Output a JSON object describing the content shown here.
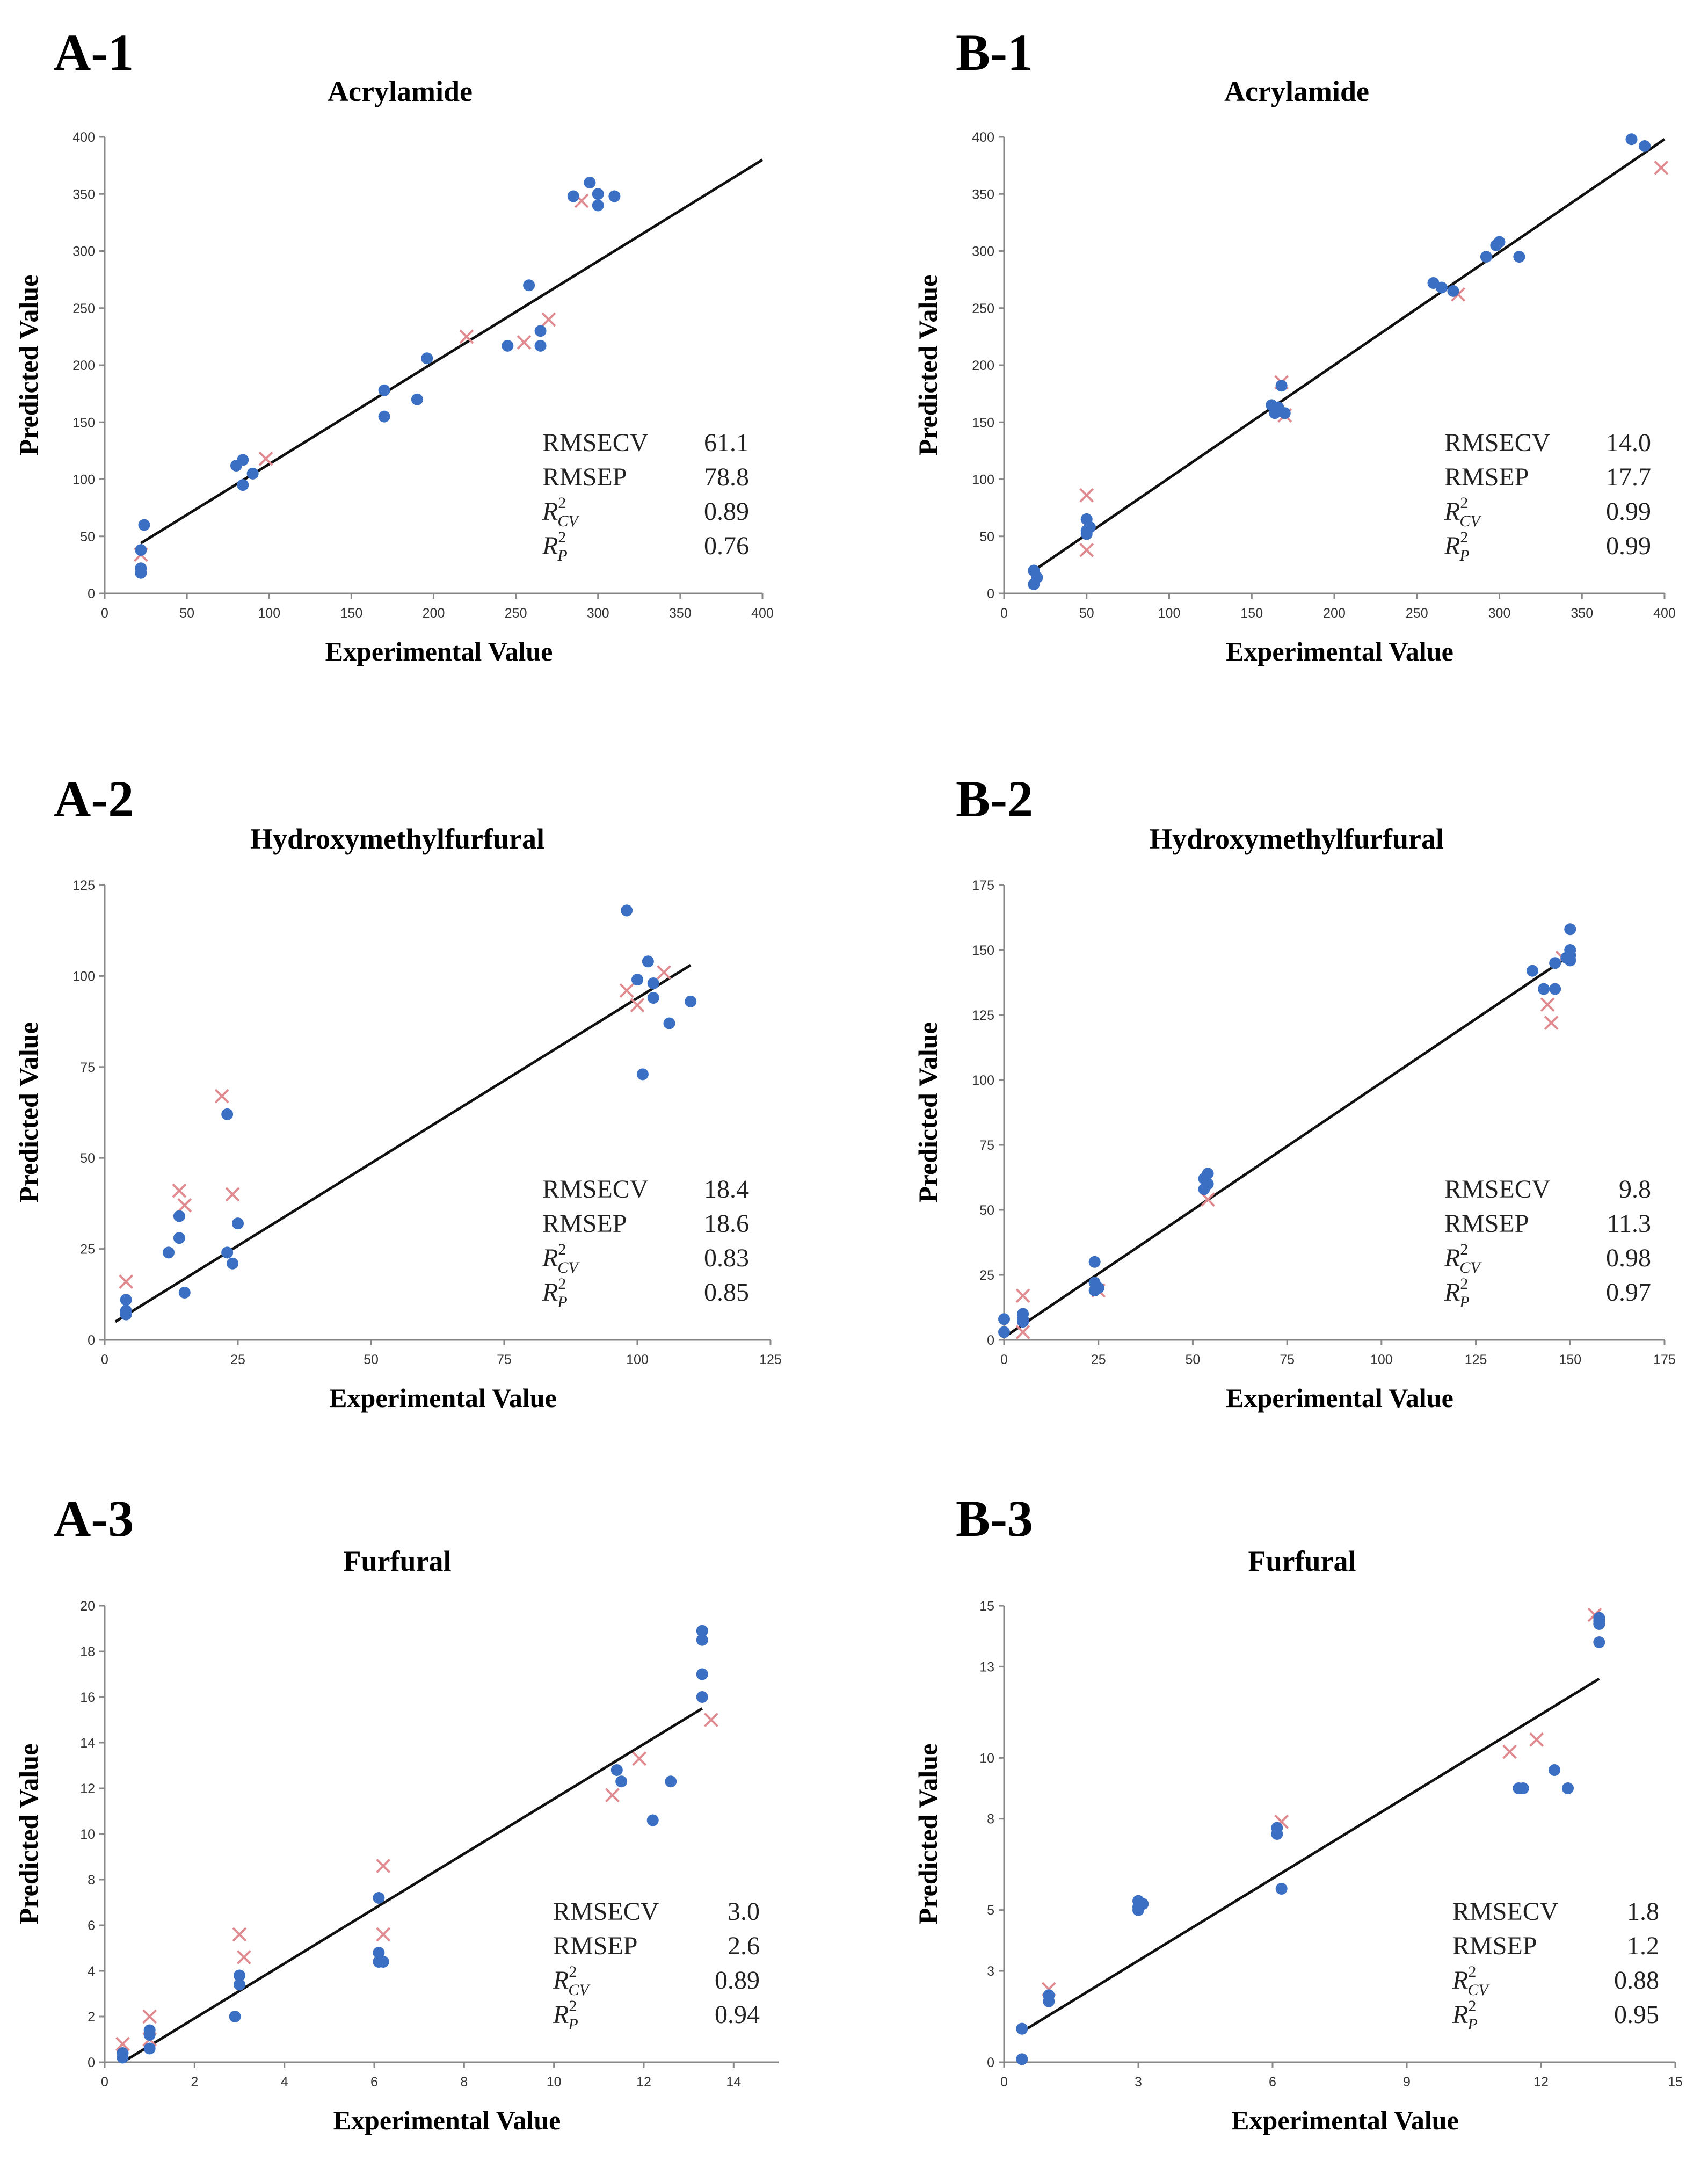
{
  "colors": {
    "calibration": "#3a6fc4",
    "validation": "#e0898f",
    "fit": "#111111",
    "axis": "#888888"
  },
  "chart_data": [
    {
      "id": "A-1",
      "panel": "A-1",
      "type": "scatter",
      "title": "Acrylamide",
      "xlabel": "Experimental Value",
      "ylabel": "Predicted Value",
      "xlim": [
        0,
        400
      ],
      "ylim": [
        0,
        400
      ],
      "xticks": [
        0,
        50,
        100,
        150,
        200,
        250,
        300,
        350,
        400
      ],
      "yticks": [
        0,
        50,
        100,
        150,
        200,
        250,
        300,
        350,
        400
      ],
      "tick_format": [
        "0",
        "50",
        "100",
        "150",
        "200",
        "250",
        "300",
        "350",
        "400"
      ],
      "ytick_format": [
        "0",
        "50",
        "100",
        "150",
        "200",
        "250",
        "300",
        "350",
        "400"
      ],
      "fit_line": {
        "x": [
          22,
          400
        ],
        "y": [
          44,
          380
        ]
      },
      "calibration": [
        [
          22,
          18
        ],
        [
          22,
          22
        ],
        [
          24,
          60
        ],
        [
          22,
          38
        ],
        [
          80,
          112
        ],
        [
          84,
          117
        ],
        [
          84,
          95
        ],
        [
          90,
          105
        ],
        [
          170,
          178
        ],
        [
          170,
          155
        ],
        [
          190,
          170
        ],
        [
          196,
          206
        ],
        [
          245,
          217
        ],
        [
          258,
          270
        ],
        [
          265,
          217
        ],
        [
          265,
          230
        ],
        [
          285,
          348
        ],
        [
          295,
          360
        ],
        [
          300,
          350
        ],
        [
          300,
          340
        ],
        [
          310,
          348
        ]
      ],
      "validation": [
        [
          22,
          34
        ],
        [
          98,
          118
        ],
        [
          220,
          225
        ],
        [
          255,
          220
        ],
        [
          270,
          240
        ],
        [
          290,
          344
        ]
      ],
      "stats": [
        {
          "label": "RMSECV",
          "value": "61.1"
        },
        {
          "label": "RMSEP",
          "value": "78.8"
        },
        {
          "label": "R",
          "sup": "2",
          "sub": "CV",
          "value": "0.89"
        },
        {
          "label": "R",
          "sup": "2",
          "sub": "P",
          "value": "0.76"
        }
      ]
    },
    {
      "id": "B-1",
      "panel": "B-1",
      "type": "scatter",
      "title": "Acrylamide",
      "xlabel": "Experimental Value",
      "ylabel": "Predicted Value",
      "xlim": [
        0,
        400
      ],
      "ylim": [
        0,
        400
      ],
      "xticks": [
        0,
        50,
        100,
        150,
        200,
        250,
        300,
        350,
        400
      ],
      "yticks": [
        0,
        50,
        100,
        150,
        200,
        250,
        300,
        350,
        400
      ],
      "tick_format": [
        "0",
        "50",
        "100",
        "150",
        "200",
        "250",
        "300",
        "350",
        "400"
      ],
      "ytick_format": [
        "0",
        "50",
        "100",
        "150",
        "200",
        "250",
        "300",
        "350",
        "400"
      ],
      "fit_line": {
        "x": [
          18,
          400
        ],
        "y": [
          20,
          398
        ]
      },
      "calibration": [
        [
          18,
          8
        ],
        [
          18,
          20
        ],
        [
          20,
          14
        ],
        [
          50,
          55
        ],
        [
          50,
          65
        ],
        [
          52,
          58
        ],
        [
          50,
          52
        ],
        [
          162,
          165
        ],
        [
          164,
          158
        ],
        [
          166,
          163
        ],
        [
          168,
          182
        ],
        [
          170,
          158
        ],
        [
          260,
          272
        ],
        [
          265,
          268
        ],
        [
          272,
          265
        ],
        [
          292,
          295
        ],
        [
          298,
          305
        ],
        [
          300,
          308
        ],
        [
          312,
          295
        ],
        [
          380,
          398
        ],
        [
          388,
          392
        ]
      ],
      "validation": [
        [
          50,
          86
        ],
        [
          50,
          38
        ],
        [
          168,
          185
        ],
        [
          170,
          156
        ],
        [
          275,
          262
        ],
        [
          398,
          373
        ]
      ],
      "stats": [
        {
          "label": "RMSECV",
          "value": "14.0"
        },
        {
          "label": "RMSEP",
          "value": "17.7"
        },
        {
          "label": "R",
          "sup": "2",
          "sub": "CV",
          "value": "0.99"
        },
        {
          "label": "R",
          "sup": "2",
          "sub": "P",
          "value": "0.99"
        }
      ]
    },
    {
      "id": "A-2",
      "panel": "A-2",
      "type": "scatter",
      "title": "Hydroxymethylfurfural",
      "xlabel": "Experimental Value",
      "ylabel": "Predicted Value",
      "xlim": [
        0,
        125
      ],
      "ylim": [
        0,
        125
      ],
      "xticks": [
        0,
        25,
        50,
        75,
        100,
        125
      ],
      "yticks": [
        0,
        25,
        50,
        75,
        100,
        125
      ],
      "tick_format": [
        "0",
        "25",
        "50",
        "75",
        "100",
        "125"
      ],
      "ytick_format": [
        "0",
        "25",
        "50",
        "75",
        "100",
        "125"
      ],
      "fit_line": {
        "x": [
          2,
          110
        ],
        "y": [
          5,
          103
        ]
      },
      "calibration": [
        [
          4,
          11
        ],
        [
          4,
          7
        ],
        [
          4,
          8
        ],
        [
          12,
          24
        ],
        [
          14,
          34
        ],
        [
          14,
          28
        ],
        [
          15,
          13
        ],
        [
          23,
          62
        ],
        [
          23,
          24
        ],
        [
          24,
          21
        ],
        [
          25,
          32
        ],
        [
          98,
          118
        ],
        [
          100,
          99
        ],
        [
          101,
          73
        ],
        [
          102,
          104
        ],
        [
          103,
          94
        ],
        [
          103,
          98
        ],
        [
          106,
          87
        ],
        [
          110,
          93
        ]
      ],
      "validation": [
        [
          4,
          16
        ],
        [
          14,
          41
        ],
        [
          15,
          37
        ],
        [
          22,
          67
        ],
        [
          24,
          40
        ],
        [
          98,
          96
        ],
        [
          100,
          92
        ],
        [
          105,
          101
        ]
      ],
      "stats": [
        {
          "label": "RMSECV",
          "value": "18.4"
        },
        {
          "label": "RMSEP",
          "value": "18.6"
        },
        {
          "label": "R",
          "sup": "2",
          "sub": "CV",
          "value": "0.83"
        },
        {
          "label": "R",
          "sup": "2",
          "sub": "P",
          "value": "0.85"
        }
      ]
    },
    {
      "id": "B-2",
      "panel": "B-2",
      "type": "scatter",
      "title": "Hydroxymethylfurfural",
      "xlabel": "Experimental Value",
      "ylabel": "Predicted Value",
      "xlim": [
        0,
        175
      ],
      "ylim": [
        0,
        175
      ],
      "xticks": [
        0,
        25,
        50,
        75,
        100,
        125,
        150,
        175
      ],
      "yticks": [
        0,
        25,
        50,
        75,
        100,
        125,
        150,
        175
      ],
      "tick_format": [
        "0",
        "25",
        "50",
        "75",
        "100",
        "125",
        "150",
        "175"
      ],
      "ytick_format": [
        "0",
        "25",
        "50",
        "75",
        "100",
        "125",
        "150",
        "175"
      ],
      "fit_line": {
        "x": [
          0,
          150
        ],
        "y": [
          1,
          148
        ]
      },
      "calibration": [
        [
          0,
          8
        ],
        [
          0,
          3
        ],
        [
          5,
          7
        ],
        [
          5,
          10
        ],
        [
          5,
          8
        ],
        [
          24,
          30
        ],
        [
          24,
          22
        ],
        [
          25,
          20
        ],
        [
          24,
          19
        ],
        [
          53,
          62
        ],
        [
          54,
          64
        ],
        [
          53,
          58
        ],
        [
          54,
          60
        ],
        [
          140,
          142
        ],
        [
          143,
          135
        ],
        [
          146,
          135
        ],
        [
          146,
          145
        ],
        [
          149,
          147
        ],
        [
          150,
          158
        ],
        [
          150,
          150
        ],
        [
          150,
          148
        ],
        [
          150,
          146
        ]
      ],
      "validation": [
        [
          5,
          17
        ],
        [
          5,
          3
        ],
        [
          25,
          19
        ],
        [
          54,
          54
        ],
        [
          144,
          129
        ],
        [
          145,
          122
        ],
        [
          148,
          147
        ]
      ],
      "stats": [
        {
          "label": "RMSECV",
          "value": "9.8"
        },
        {
          "label": "RMSEP",
          "value": "11.3"
        },
        {
          "label": "R",
          "sup": "2",
          "sub": "CV",
          "value": "0.98"
        },
        {
          "label": "R",
          "sup": "2",
          "sub": "P",
          "value": "0.97"
        }
      ]
    },
    {
      "id": "A-3",
      "panel": "A-3",
      "type": "scatter",
      "title": "Furfural",
      "xlabel": "Experimental Value",
      "ylabel": "Predicted Value",
      "xlim": [
        0,
        15
      ],
      "ylim": [
        0,
        20
      ],
      "xticks": [
        0,
        2,
        4,
        6,
        8,
        10,
        12,
        14
      ],
      "yticks": [
        0,
        2,
        4,
        6,
        8,
        10,
        12,
        14,
        16,
        18,
        20
      ],
      "tick_format": [
        "0",
        "2",
        "4",
        "6",
        "8",
        "10",
        "12",
        "14"
      ],
      "ytick_format": [
        "0",
        "2",
        "4",
        "6",
        "8",
        "10",
        "12",
        "14",
        "16",
        "18",
        "20"
      ],
      "fit_line": {
        "x": [
          0.4,
          13.3
        ],
        "y": [
          0,
          15.5
        ]
      },
      "calibration": [
        [
          0.4,
          0.4
        ],
        [
          0.4,
          0.2
        ],
        [
          1,
          0.6
        ],
        [
          1,
          1.2
        ],
        [
          1,
          1.4
        ],
        [
          2.9,
          2
        ],
        [
          3,
          3.8
        ],
        [
          3,
          3.4
        ],
        [
          6.1,
          7.2
        ],
        [
          6.1,
          4.8
        ],
        [
          6.1,
          4.4
        ],
        [
          6.2,
          4.4
        ],
        [
          11.4,
          12.8
        ],
        [
          11.5,
          12.3
        ],
        [
          12.2,
          10.6
        ],
        [
          12.6,
          12.3
        ],
        [
          13.3,
          18.9
        ],
        [
          13.3,
          18.5
        ],
        [
          13.3,
          17
        ],
        [
          13.3,
          16
        ]
      ],
      "validation": [
        [
          0.4,
          0.8
        ],
        [
          1,
          2
        ],
        [
          1,
          1
        ],
        [
          3,
          5.6
        ],
        [
          3.1,
          4.6
        ],
        [
          6.2,
          8.6
        ],
        [
          6.2,
          5.6
        ],
        [
          11.3,
          11.7
        ],
        [
          11.9,
          13.3
        ],
        [
          13.5,
          15
        ]
      ],
      "stats": [
        {
          "label": "RMSECV",
          "value": "3.0"
        },
        {
          "label": "RMSEP",
          "value": "2.6"
        },
        {
          "label": "R",
          "sup": "2",
          "sub": "CV",
          "value": "0.89"
        },
        {
          "label": "R",
          "sup": "2",
          "sub": "P",
          "value": "0.94"
        }
      ]
    },
    {
      "id": "B-3",
      "panel": "B-3",
      "type": "scatter",
      "title": "Furfural",
      "xlabel": "Experimental Value",
      "ylabel": "Predicted Value",
      "xlim": [
        0,
        15
      ],
      "ylim": [
        0,
        15
      ],
      "xticks": [
        0,
        3,
        6,
        9,
        12,
        15
      ],
      "yticks": [
        0,
        3,
        5,
        8,
        10,
        13,
        15
      ],
      "tick_format": [
        "0",
        "3",
        "6",
        "9",
        "12",
        "15"
      ],
      "ytick_format": [
        "0",
        "3",
        "5",
        "8",
        "10",
        "13",
        "15"
      ],
      "fit_line": {
        "x": [
          0.4,
          13.3
        ],
        "y": [
          1,
          12.6
        ]
      },
      "calibration": [
        [
          0.4,
          1.1
        ],
        [
          0.4,
          0.1
        ],
        [
          1,
          2.2
        ],
        [
          1,
          2
        ],
        [
          3,
          5.1
        ],
        [
          3,
          5.3
        ],
        [
          3.1,
          5.2
        ],
        [
          3,
          5
        ],
        [
          6.1,
          7.7
        ],
        [
          6.1,
          7.5
        ],
        [
          6.2,
          5.7
        ],
        [
          11.5,
          9
        ],
        [
          11.6,
          9
        ],
        [
          12.3,
          9.6
        ],
        [
          12.6,
          9
        ],
        [
          13.3,
          14.6
        ],
        [
          13.3,
          14.4
        ],
        [
          13.3,
          14.5
        ],
        [
          13.3,
          13.8
        ]
      ],
      "validation": [
        [
          1,
          2.4
        ],
        [
          6.2,
          7.9
        ],
        [
          11.3,
          10.2
        ],
        [
          11.9,
          10.6
        ],
        [
          13.2,
          14.7
        ]
      ],
      "stats": [
        {
          "label": "RMSECV",
          "value": "1.8"
        },
        {
          "label": "RMSEP",
          "value": "1.2"
        },
        {
          "label": "R",
          "sup": "2",
          "sub": "CV",
          "value": "0.88"
        },
        {
          "label": "R",
          "sup": "2",
          "sub": "P",
          "value": "0.95"
        }
      ]
    }
  ]
}
